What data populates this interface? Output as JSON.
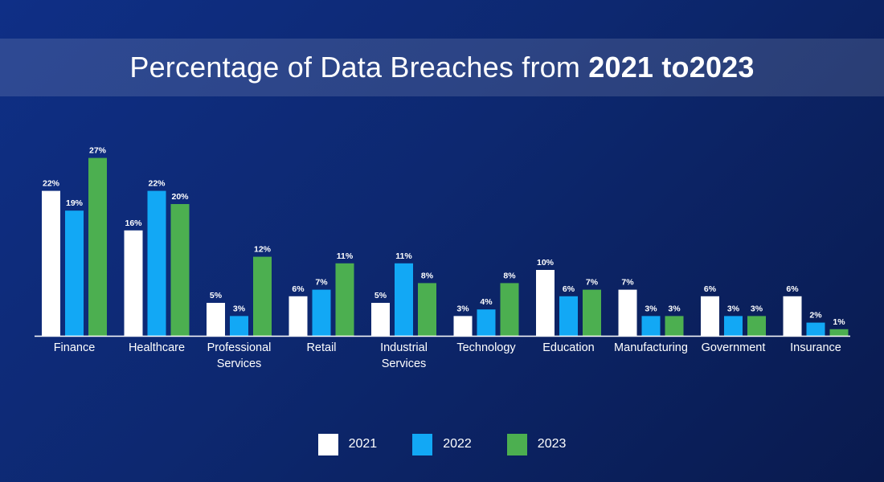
{
  "title": {
    "prefix": "Percentage of Data Breaches from ",
    "bold": "2021 to2023"
  },
  "colors": {
    "2021": "#ffffff",
    "2022": "#12a8f5",
    "2023": "#4caf50",
    "background": "#0d2870"
  },
  "chart_data": {
    "type": "bar",
    "title": "Percentage of Data Breaches from 2021 to2023",
    "xlabel": "",
    "ylabel": "",
    "ylim": [
      0,
      30
    ],
    "grid": false,
    "legend_position": "bottom-center",
    "value_suffix": "%",
    "categories": [
      [
        "Finance"
      ],
      [
        "Healthcare"
      ],
      [
        "Professional",
        "Services"
      ],
      [
        "Retail"
      ],
      [
        "Industrial",
        "Services"
      ],
      [
        "Technology"
      ],
      [
        "Education"
      ],
      [
        "Manufacturing"
      ],
      [
        "Government"
      ],
      [
        "Insurance"
      ]
    ],
    "series": [
      {
        "name": "2021",
        "values": [
          22,
          16,
          5,
          6,
          5,
          3,
          10,
          7,
          6,
          6
        ]
      },
      {
        "name": "2022",
        "values": [
          19,
          22,
          3,
          7,
          11,
          4,
          6,
          3,
          3,
          2
        ]
      },
      {
        "name": "2023",
        "values": [
          27,
          20,
          12,
          11,
          8,
          8,
          7,
          3,
          3,
          1
        ]
      }
    ]
  },
  "legend": [
    {
      "label": "2021"
    },
    {
      "label": "2022"
    },
    {
      "label": "2023"
    }
  ]
}
